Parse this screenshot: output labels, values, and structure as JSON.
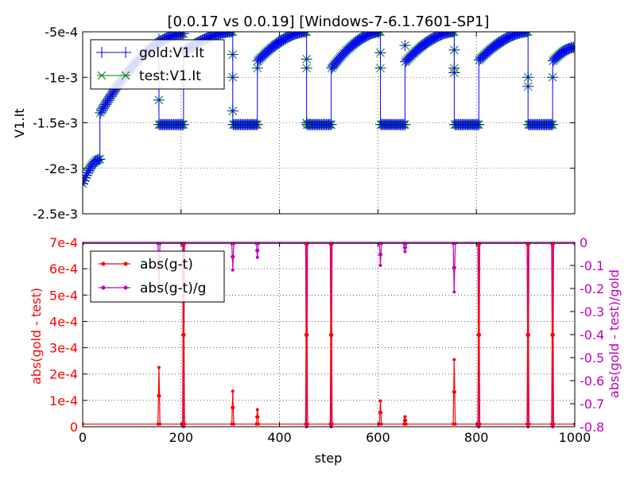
{
  "page": {
    "title": "[0.0.17 vs 0.0.19] [Windows-7-6.1.7601-SP1]"
  },
  "colors": {
    "gold": "#0000ff",
    "test": "#008000",
    "abs_diff": "#ff0000",
    "rel_diff": "#bf00bf",
    "axis": "#000000",
    "grid": "#000000",
    "background": "#ffffff"
  },
  "chart_data": [
    {
      "type": "line",
      "title": "[0.0.17 vs 0.0.19] [Windows-7-6.1.7601-SP1]",
      "xlabel": "",
      "ylabel": "V1.It",
      "xlim": [
        0,
        1000
      ],
      "ylim": [
        -0.0025,
        -0.0005
      ],
      "xticks": [
        0,
        200,
        400,
        600,
        800,
        1000
      ],
      "yticks": [
        -0.0005,
        -0.001,
        -0.0015,
        -0.002,
        -0.0025
      ],
      "ytick_labels": [
        "-5e-4",
        "-1e-3",
        "-1.5e-3",
        "-2e-3",
        "-2.5e-3"
      ],
      "grid": true,
      "legend_position": "upper-left",
      "series": [
        {
          "name": "gold:V1.It",
          "marker": "plus",
          "color": "#0000ff"
        },
        {
          "name": "test:V1.It",
          "marker": "x",
          "color": "#008000"
        }
      ],
      "segments": [
        {
          "x": [
            0,
            35
          ],
          "y": [
            -0.00217,
            -0.0019
          ]
        },
        {
          "x": [
            36,
            205
          ],
          "y": [
            -0.00139,
            -0.00052
          ]
        },
        {
          "x": [
            155,
            205
          ],
          "y": [
            -0.00152,
            -0.00152
          ]
        },
        {
          "x": [
            206,
            305
          ],
          "y": [
            -0.00072,
            -0.0005
          ]
        },
        {
          "x": [
            306,
            355
          ],
          "y": [
            -0.00152,
            -0.00152
          ]
        },
        {
          "x": [
            356,
            455
          ],
          "y": [
            -0.00082,
            -0.0005
          ]
        },
        {
          "x": [
            456,
            505
          ],
          "y": [
            -0.00152,
            -0.00152
          ]
        },
        {
          "x": [
            506,
            605
          ],
          "y": [
            -0.0009,
            -0.0005
          ]
        },
        {
          "x": [
            606,
            655
          ],
          "y": [
            -0.00152,
            -0.00152
          ]
        },
        {
          "x": [
            656,
            755
          ],
          "y": [
            -0.00083,
            -0.0005
          ]
        },
        {
          "x": [
            756,
            805
          ],
          "y": [
            -0.00152,
            -0.00152
          ]
        },
        {
          "x": [
            806,
            905
          ],
          "y": [
            -0.00081,
            -0.0005
          ]
        },
        {
          "x": [
            906,
            955
          ],
          "y": [
            -0.00152,
            -0.00152
          ]
        },
        {
          "x": [
            956,
            1000
          ],
          "y": [
            -0.00082,
            -0.00067
          ]
        }
      ],
      "outliers": [
        {
          "x": 155,
          "y": -0.00125
        },
        {
          "x": 305,
          "y": -0.001
        },
        {
          "x": 305,
          "y": -0.00075
        },
        {
          "x": 305,
          "y": -0.00137
        },
        {
          "x": 355,
          "y": -0.0009
        },
        {
          "x": 455,
          "y": -0.0008
        },
        {
          "x": 455,
          "y": -0.0009
        },
        {
          "x": 455,
          "y": -0.0015
        },
        {
          "x": 605,
          "y": -0.00073
        },
        {
          "x": 605,
          "y": -0.0009
        },
        {
          "x": 655,
          "y": -0.00065
        },
        {
          "x": 755,
          "y": -0.0007
        },
        {
          "x": 755,
          "y": -0.0009
        },
        {
          "x": 755,
          "y": -0.00095
        },
        {
          "x": 905,
          "y": -0.001
        },
        {
          "x": 905,
          "y": -0.0011
        },
        {
          "x": 955,
          "y": -0.001
        }
      ]
    },
    {
      "type": "line",
      "xlabel": "step",
      "ylabel": "abs(gold - test)",
      "ylabel_right": "abs(gold - test)/gold",
      "xlim": [
        0,
        1000
      ],
      "ylim": [
        0,
        0.0007
      ],
      "ylim_right": [
        -0.8,
        0
      ],
      "xticks": [
        0,
        200,
        400,
        600,
        800,
        1000
      ],
      "yticks": [
        0,
        0.0001,
        0.0002,
        0.0003,
        0.0004,
        0.0005,
        0.0006,
        0.0007
      ],
      "ytick_labels": [
        "0",
        "1e-4",
        "2e-4",
        "3e-4",
        "4e-4",
        "5e-4",
        "6e-4",
        "7e-4"
      ],
      "yticks_right": [
        0,
        -0.1,
        -0.2,
        -0.3,
        -0.4,
        -0.5,
        -0.6,
        -0.7,
        -0.8
      ],
      "ytick_labels_right": [
        "0",
        "-0.1",
        "-0.2",
        "-0.3",
        "-0.4",
        "-0.5",
        "-0.6",
        "-0.7",
        "-0.8"
      ],
      "grid": true,
      "legend_position": "upper-left",
      "series": [
        {
          "name": "abs(g-t)",
          "axis": "left",
          "color": "#ff0000",
          "baseline": 1e-05,
          "spikes": [
            {
              "x": 155,
              "peak": 0.000225
            },
            {
              "x": 205,
              "peak": 0.00069
            },
            {
              "x": 305,
              "peak": 0.000135
            },
            {
              "x": 355,
              "peak": 6.5e-05
            },
            {
              "x": 455,
              "peak": 0.00069
            },
            {
              "x": 505,
              "peak": 0.00069
            },
            {
              "x": 605,
              "peak": 9.8e-05
            },
            {
              "x": 655,
              "peak": 3.8e-05
            },
            {
              "x": 755,
              "peak": 0.000255
            },
            {
              "x": 805,
              "peak": 0.00069
            },
            {
              "x": 905,
              "peak": 0.00069
            },
            {
              "x": 955,
              "peak": 0.00069
            }
          ]
        },
        {
          "name": "abs(g-t)/g",
          "axis": "right",
          "color": "#bf00bf",
          "baseline": -0.005,
          "spikes": [
            {
              "x": 155,
              "peak": -0.215
            },
            {
              "x": 205,
              "peak": -0.8
            },
            {
              "x": 305,
              "peak": -0.12
            },
            {
              "x": 355,
              "peak": -0.065
            },
            {
              "x": 455,
              "peak": -0.8
            },
            {
              "x": 505,
              "peak": -0.8
            },
            {
              "x": 605,
              "peak": -0.1
            },
            {
              "x": 655,
              "peak": -0.04
            },
            {
              "x": 755,
              "peak": -0.215
            },
            {
              "x": 805,
              "peak": -0.8
            },
            {
              "x": 905,
              "peak": -0.8
            },
            {
              "x": 955,
              "peak": -0.8
            }
          ]
        }
      ]
    }
  ]
}
